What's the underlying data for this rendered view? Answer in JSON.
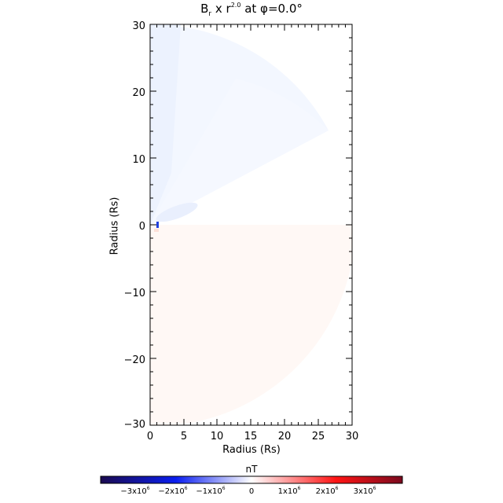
{
  "chart_data": {
    "type": "heatmap",
    "title": "B_r x r^2.0 at φ=0.0°",
    "title_parts": {
      "main": "B",
      "sub": "r",
      "mid": " x r",
      "exp": "2.0",
      "tail": " at φ=0.0°"
    },
    "xlabel": "Radius (Rs)",
    "ylabel": "Radius (Rs)",
    "xlim": [
      0,
      30
    ],
    "ylim": [
      -30,
      30
    ],
    "x_ticks": [
      "0",
      "5",
      "10",
      "15",
      "20",
      "25",
      "30"
    ],
    "y_ticks": [
      "30",
      "20",
      "10",
      "0",
      "−10",
      "−20",
      "−30"
    ],
    "grid": false,
    "colorbar": {
      "label": "nT",
      "range": [
        -4000000,
        4000000
      ],
      "colormap": [
        "#1a0a50",
        "#0a1ef0",
        "#ffffff",
        "#ff1414",
        "#7a0a1e"
      ],
      "ticks": [
        {
          "base": "−3x10",
          "exp": "6",
          "value": -3000000
        },
        {
          "base": "−2x10",
          "exp": "6",
          "value": -2000000
        },
        {
          "base": "−1x10",
          "exp": "6",
          "value": -1000000
        },
        {
          "base": "0",
          "exp": "",
          "value": 0
        },
        {
          "base": "1x10",
          "exp": "6",
          "value": 1000000
        },
        {
          "base": "2x10",
          "exp": "6",
          "value": 2000000
        },
        {
          "base": "3x10",
          "exp": "6",
          "value": 3000000
        }
      ]
    },
    "regions": [
      {
        "name": "northern-wedge",
        "sign": "negative",
        "color": "#eef3fe",
        "theta_deg": [
          28,
          90
        ],
        "r_max": 30
      },
      {
        "name": "southern-wedge",
        "sign": "positive",
        "color": "#fff8f5",
        "theta_deg": [
          -72,
          0
        ],
        "r_max": 30
      }
    ]
  }
}
